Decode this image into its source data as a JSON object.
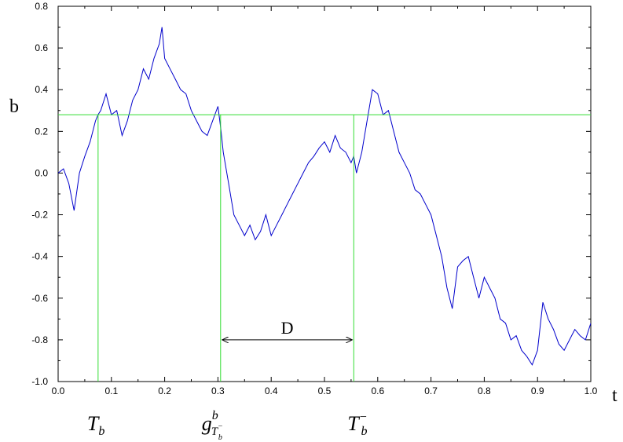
{
  "chart_data": {
    "type": "line",
    "xlabel": "t",
    "ylabel": "b",
    "xlim": [
      0.0,
      1.0
    ],
    "ylim": [
      -1.0,
      0.8
    ],
    "xticks": [
      "0.0",
      "0.1",
      "0.2",
      "0.3",
      "0.4",
      "0.5",
      "0.6",
      "0.7",
      "0.8",
      "0.9",
      "1.0"
    ],
    "yticks": [
      "-1.0",
      "-0.8",
      "-0.6",
      "-0.4",
      "-0.2",
      "0.0",
      "0.2",
      "0.4",
      "0.6",
      "0.8"
    ],
    "grid": false,
    "legend": "none",
    "colors": {
      "path": "#0000cc",
      "markers": "#33dd33",
      "axes": "#000000"
    },
    "series": [
      {
        "x": [
          0.0,
          0.01,
          0.02,
          0.03,
          0.04,
          0.05,
          0.06,
          0.07,
          0.075,
          0.08,
          0.09,
          0.1,
          0.11,
          0.12,
          0.13,
          0.14,
          0.15,
          0.16,
          0.17,
          0.18,
          0.19,
          0.195,
          0.2,
          0.21,
          0.22,
          0.23,
          0.24,
          0.25,
          0.26,
          0.27,
          0.28,
          0.29,
          0.3,
          0.305,
          0.31,
          0.32,
          0.33,
          0.34,
          0.35,
          0.36,
          0.37,
          0.38,
          0.39,
          0.4,
          0.41,
          0.42,
          0.43,
          0.44,
          0.45,
          0.46,
          0.47,
          0.48,
          0.49,
          0.5,
          0.51,
          0.52,
          0.53,
          0.54,
          0.55,
          0.555,
          0.56,
          0.57,
          0.58,
          0.59,
          0.6,
          0.61,
          0.62,
          0.63,
          0.64,
          0.65,
          0.66,
          0.67,
          0.68,
          0.69,
          0.7,
          0.71,
          0.72,
          0.73,
          0.74,
          0.75,
          0.76,
          0.77,
          0.78,
          0.79,
          0.8,
          0.81,
          0.82,
          0.83,
          0.84,
          0.85,
          0.86,
          0.87,
          0.88,
          0.89,
          0.9,
          0.91,
          0.92,
          0.93,
          0.94,
          0.95,
          0.96,
          0.97,
          0.98,
          0.99,
          1.0
        ],
        "y": [
          0.0,
          0.02,
          -0.05,
          -0.18,
          0.0,
          0.08,
          0.15,
          0.25,
          0.28,
          0.3,
          0.38,
          0.28,
          0.3,
          0.18,
          0.25,
          0.35,
          0.4,
          0.5,
          0.45,
          0.55,
          0.62,
          0.7,
          0.55,
          0.5,
          0.45,
          0.4,
          0.38,
          0.3,
          0.25,
          0.2,
          0.18,
          0.25,
          0.32,
          0.22,
          0.1,
          -0.05,
          -0.2,
          -0.25,
          -0.3,
          -0.25,
          -0.32,
          -0.28,
          -0.2,
          -0.3,
          -0.25,
          -0.2,
          -0.15,
          -0.1,
          -0.05,
          0.0,
          0.05,
          0.08,
          0.12,
          0.15,
          0.1,
          0.18,
          0.12,
          0.1,
          0.05,
          0.08,
          0.0,
          0.1,
          0.25,
          0.4,
          0.38,
          0.28,
          0.3,
          0.2,
          0.1,
          0.05,
          0.0,
          -0.08,
          -0.1,
          -0.15,
          -0.2,
          -0.3,
          -0.4,
          -0.55,
          -0.65,
          -0.45,
          -0.42,
          -0.4,
          -0.5,
          -0.6,
          -0.5,
          -0.55,
          -0.6,
          -0.7,
          -0.72,
          -0.8,
          -0.78,
          -0.85,
          -0.88,
          -0.92,
          -0.85,
          -0.62,
          -0.7,
          -0.75,
          -0.82,
          -0.85,
          -0.8,
          -0.75,
          -0.78,
          -0.8,
          -0.72
        ]
      }
    ],
    "threshold_b": 0.28,
    "verticals": [
      0.075,
      0.305,
      0.555
    ],
    "interval": {
      "from": 0.305,
      "to": 0.555,
      "y": -0.8,
      "label": "D"
    },
    "annotations": {
      "tb": {
        "main": "T",
        "sub": "b"
      },
      "g": {
        "main": "g",
        "sup": "b",
        "sub": "T",
        "subsub": "b",
        "subsup": "−"
      },
      "tbminus": {
        "main": "T",
        "sup": "−",
        "sub": "b"
      }
    }
  }
}
